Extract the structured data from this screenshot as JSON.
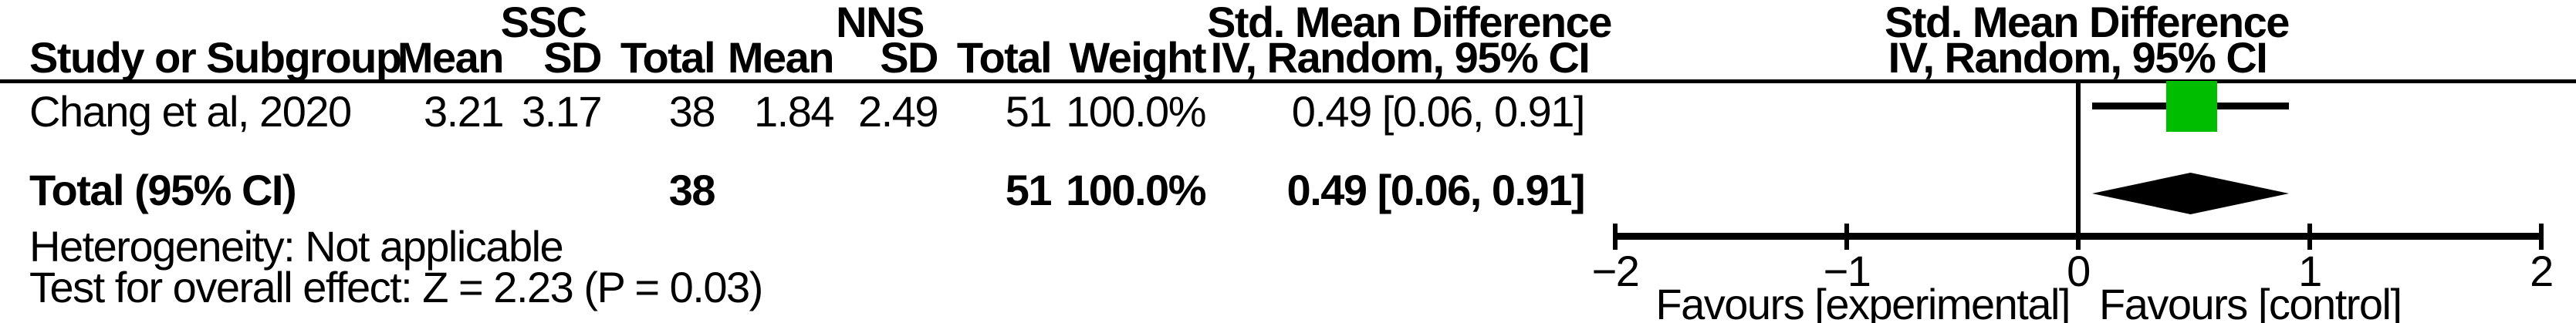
{
  "table": {
    "group_headers": {
      "ssc": "SSC",
      "nns": "NNS"
    },
    "effect_header": {
      "line1": "Std. Mean Difference",
      "line2": "IV, Random, 95% CI"
    },
    "plot_header": {
      "line1": "Std. Mean Difference",
      "line2": "IV, Random, 95% CI"
    },
    "columns": {
      "study": "Study or Subgroup",
      "mean1": "Mean",
      "sd1": "SD",
      "total1": "Total",
      "mean2": "Mean",
      "sd2": "SD",
      "total2": "Total",
      "weight": "Weight"
    },
    "rows": [
      {
        "study": "Chang et al, 2020",
        "mean1": "3.21",
        "sd1": "3.17",
        "total1": "38",
        "mean2": "1.84",
        "sd2": "2.49",
        "total2": "51",
        "weight": "100.0%",
        "effect": "0.49 [0.06, 0.91]"
      }
    ],
    "total_row": {
      "label": "Total (95% CI)",
      "total1": "38",
      "total2": "51",
      "weight": "100.0%",
      "effect": "0.49 [0.06, 0.91]"
    },
    "footnotes": [
      "Heterogeneity: Not applicable",
      "Test for overall effect: Z = 2.23 (P = 0.03)"
    ]
  },
  "chart_data": {
    "type": "scatter",
    "subtype": "forest-plot",
    "title": "",
    "effect_measure": "Std. Mean Difference",
    "method": "IV, Random, 95% CI",
    "studies": [
      {
        "name": "Chang et al, 2020",
        "estimate": 0.49,
        "ci_low": 0.06,
        "ci_high": 0.91,
        "weight_pct": 100.0
      }
    ],
    "overall": {
      "label": "Total (95% CI)",
      "estimate": 0.49,
      "ci_low": 0.06,
      "ci_high": 0.91
    },
    "xlim": [
      -2,
      2
    ],
    "ticks": [
      {
        "v": -2,
        "label": "−2"
      },
      {
        "v": -1,
        "label": "−1"
      },
      {
        "v": 0,
        "label": "0"
      },
      {
        "v": 1,
        "label": "1"
      },
      {
        "v": 2,
        "label": "2"
      }
    ],
    "zero_line": 0,
    "favours_left": "Favours [experimental]",
    "favours_right": "Favours [control]",
    "marker_color": "#00bd00",
    "diamond_color": "#000000",
    "axis_color": "#000000",
    "grid": false,
    "legend": false
  }
}
